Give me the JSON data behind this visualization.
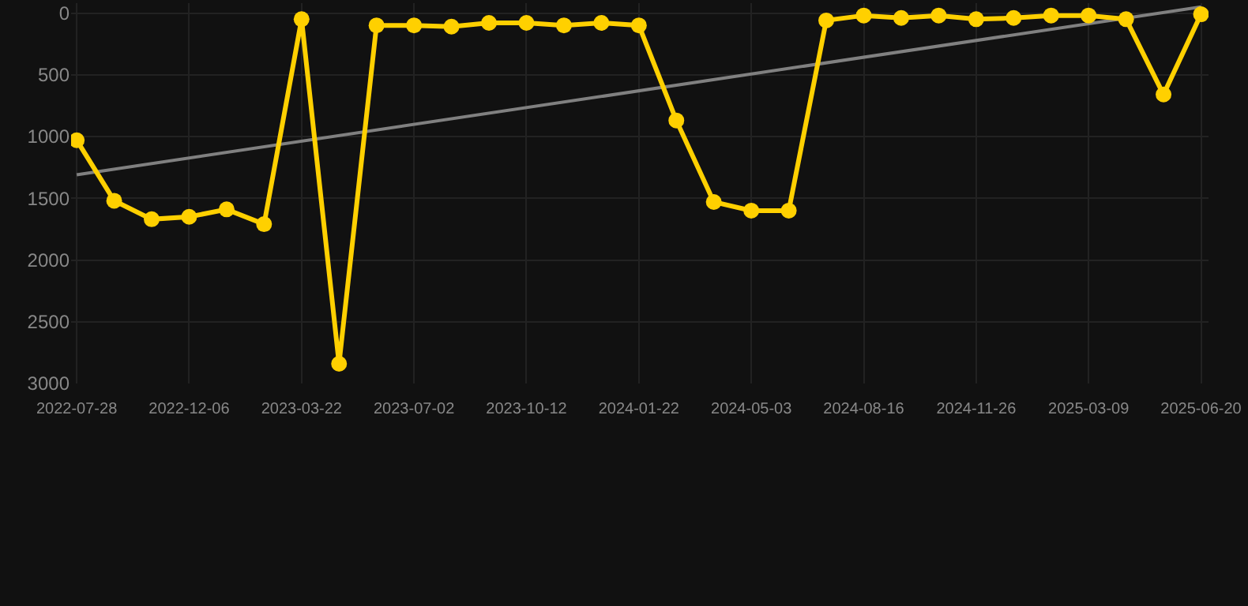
{
  "chart_data": {
    "type": "line",
    "categories": [
      "2022-07-28",
      null,
      null,
      "2022-12-06",
      null,
      null,
      "2023-03-22",
      null,
      null,
      "2023-07-02",
      null,
      null,
      "2023-10-12",
      null,
      null,
      "2024-01-22",
      null,
      null,
      "2024-05-03",
      null,
      null,
      "2024-08-16",
      null,
      null,
      "2024-11-26",
      null,
      null,
      "2025-03-09",
      null,
      null,
      "2025-06-20"
    ],
    "series": [
      {
        "color": "#ffd000",
        "values": [
          1030,
          1520,
          1670,
          1650,
          1590,
          1710,
          50,
          2840,
          100,
          100,
          110,
          80,
          80,
          100,
          80,
          100,
          870,
          1530,
          1600,
          1600,
          60,
          20,
          40,
          20,
          50,
          40,
          20,
          20,
          50,
          660,
          10
        ]
      },
      {
        "type": "line",
        "color": "#808080",
        "values": [
          1310,
          null,
          null,
          null,
          null,
          null,
          null,
          null,
          null,
          null,
          null,
          null,
          null,
          null,
          null,
          null,
          null,
          null,
          null,
          null,
          null,
          null,
          null,
          null,
          null,
          null,
          null,
          null,
          null,
          null,
          -50
        ],
        "marker": "none"
      }
    ],
    "ylim": [
      3000,
      -80
    ],
    "yticks": [
      0,
      500,
      1000,
      1500,
      2000,
      2500,
      3000
    ],
    "grid": true,
    "marker": "circle",
    "line_style": "solid"
  }
}
